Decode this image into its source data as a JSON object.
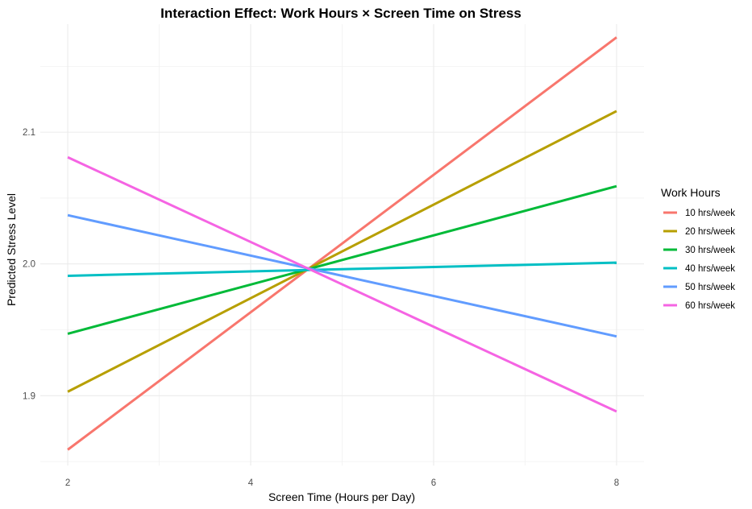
{
  "chart_data": {
    "type": "line",
    "title": "Interaction Effect: Work Hours × Screen Time on Stress",
    "xlabel": "Screen Time (Hours per Day)",
    "ylabel": "Predicted Stress Level",
    "xlim": [
      1.7,
      8.3
    ],
    "ylim": [
      1.847,
      2.182
    ],
    "x_ticks": [
      2,
      4,
      6,
      8
    ],
    "x_tick_labels": [
      "2",
      "4",
      "6",
      "8"
    ],
    "y_ticks": [
      1.9,
      2.0,
      2.1
    ],
    "y_tick_labels": [
      "1.9",
      "2.0",
      "2.1"
    ],
    "grid": true,
    "legend_title": "Work Hours",
    "legend_position": "right",
    "x": [
      2,
      8
    ],
    "series": [
      {
        "name": "10 hrs/week",
        "color": "#F8766D",
        "values": [
          1.859,
          2.172
        ]
      },
      {
        "name": "20 hrs/week",
        "color": "#B79F00",
        "values": [
          1.903,
          2.116
        ]
      },
      {
        "name": "30 hrs/week",
        "color": "#00BA38",
        "values": [
          1.947,
          2.059
        ]
      },
      {
        "name": "40 hrs/week",
        "color": "#00BFC4",
        "values": [
          1.991,
          2.001
        ]
      },
      {
        "name": "50 hrs/week",
        "color": "#619CFF",
        "values": [
          2.037,
          1.945
        ]
      },
      {
        "name": "60 hrs/week",
        "color": "#F564E3",
        "values": [
          2.081,
          1.888
        ]
      }
    ]
  }
}
